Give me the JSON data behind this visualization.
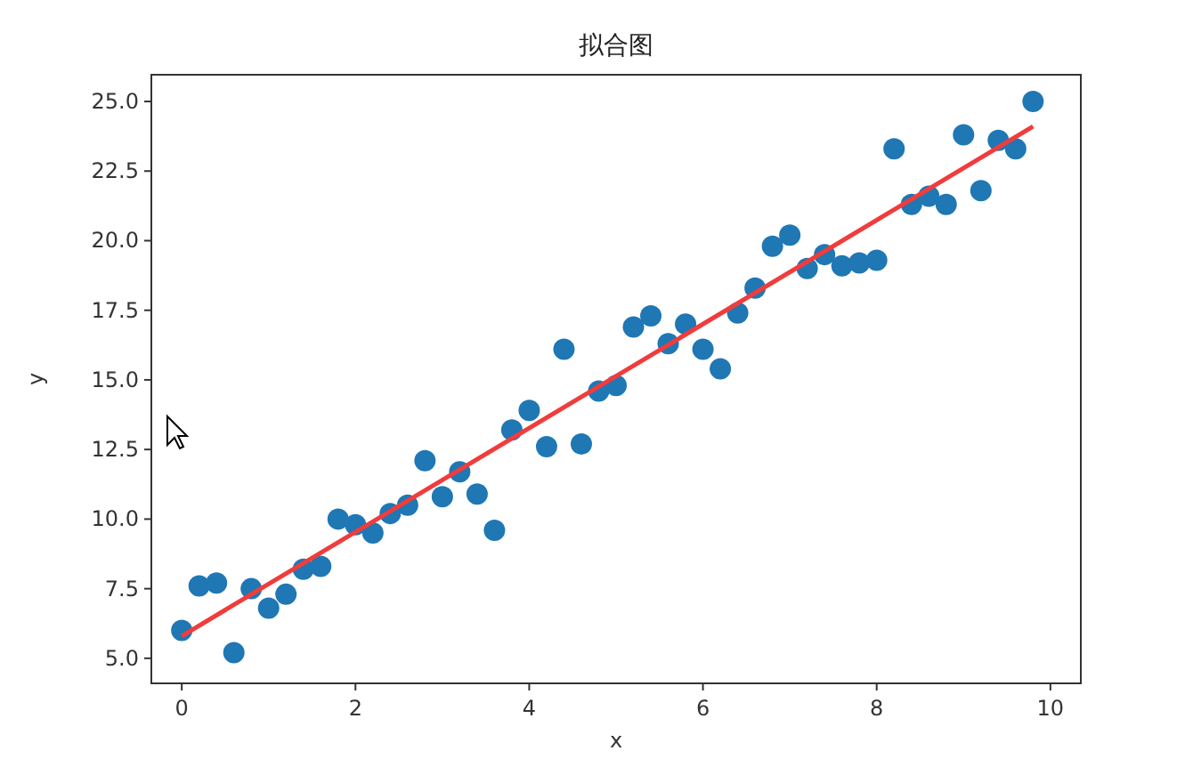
{
  "chart_data": {
    "type": "scatter",
    "title": "拟合图",
    "xlabel": "x",
    "ylabel": "y",
    "xlim": [
      -0.35,
      10.35
    ],
    "ylim": [
      4.1,
      25.96
    ],
    "xticks": [
      0,
      2,
      4,
      6,
      8,
      10
    ],
    "yticks": [
      {
        "value": 5,
        "label": "5.0"
      },
      {
        "value": 7.5,
        "label": "7.5"
      },
      {
        "value": 10,
        "label": "10.0"
      },
      {
        "value": 12.5,
        "label": "12.5"
      },
      {
        "value": 15,
        "label": "15.0"
      },
      {
        "value": 17.5,
        "label": "17.5"
      },
      {
        "value": 20,
        "label": "20.0"
      },
      {
        "value": 22.5,
        "label": "22.5"
      },
      {
        "value": 25,
        "label": "25.0"
      }
    ],
    "grid": false,
    "marker": "circle",
    "series": [
      {
        "color": "#1f77b4",
        "x": [
          0,
          0.2,
          0.4,
          0.6,
          0.8,
          1.0,
          1.2,
          1.4,
          1.6,
          1.8,
          2.0,
          2.2,
          2.4,
          2.6,
          2.8,
          3.0,
          3.2,
          3.4,
          3.6,
          3.8,
          4.0,
          4.2,
          4.4,
          4.6,
          4.8,
          5.0,
          5.2,
          5.4,
          5.6,
          5.8,
          6.0,
          6.2,
          6.4,
          6.6,
          6.8,
          7.0,
          7.2,
          7.4,
          7.6,
          7.8,
          8.0,
          8.2,
          8.4,
          8.6,
          8.8,
          9.0,
          9.2,
          9.4,
          9.6,
          9.8
        ],
        "values": [
          6.0,
          7.6,
          7.7,
          5.2,
          7.5,
          6.8,
          7.3,
          8.2,
          8.3,
          10.0,
          9.8,
          9.5,
          10.2,
          10.5,
          12.1,
          10.8,
          11.7,
          10.9,
          9.6,
          13.2,
          13.9,
          12.6,
          16.1,
          12.7,
          14.6,
          14.8,
          16.9,
          17.3,
          16.3,
          17.0,
          16.1,
          15.4,
          17.4,
          18.3,
          19.8,
          20.2,
          19.0,
          19.5,
          19.1,
          19.2,
          19.3,
          23.3,
          21.3,
          21.6,
          21.3,
          23.8,
          21.8,
          23.6,
          23.3,
          25.0
        ]
      },
      {
        "type": "line",
        "color": "#f03c3c",
        "line_style": "solid",
        "marker": "none",
        "x": [
          0,
          9.8
        ],
        "values": [
          5.8,
          24.1
        ]
      }
    ]
  }
}
